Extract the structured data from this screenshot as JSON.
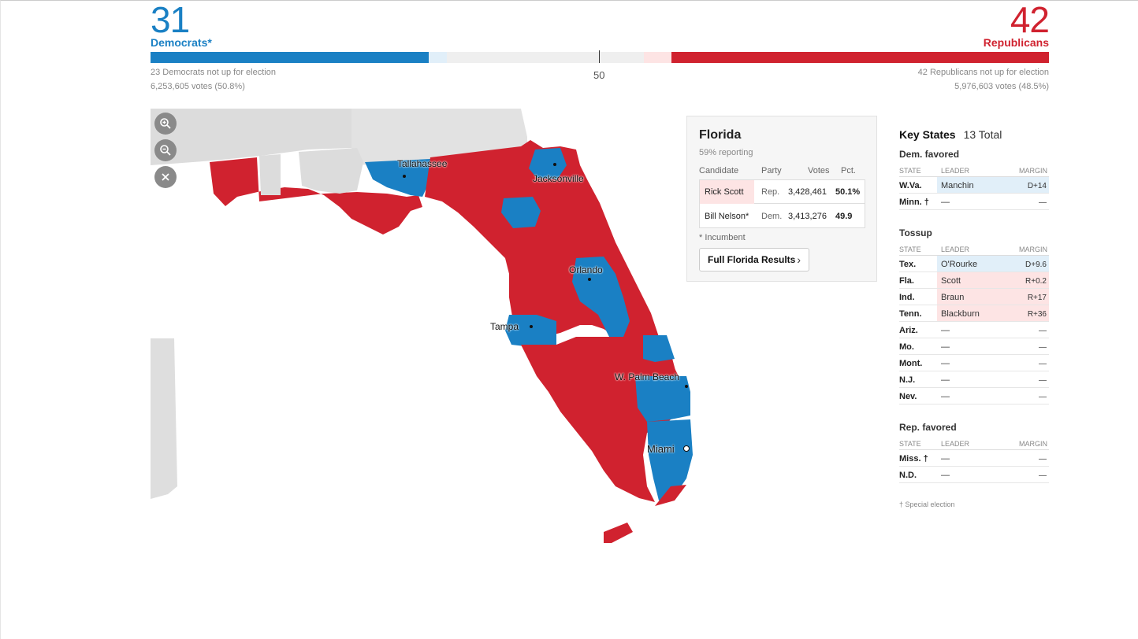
{
  "header": {
    "dem_count": "31",
    "dem_label": "Democrats*",
    "rep_count": "42",
    "rep_label": "Republicans",
    "majority_mark": "50",
    "dem_not_up": "23 Democrats not up for election",
    "dem_votes": "6,253,605 votes (50.8%)",
    "rep_not_up": "42 Republicans not up for election",
    "rep_votes": "5,976,603 votes (48.5%)"
  },
  "colors": {
    "dem": "#1a80c4",
    "rep": "#d0222f",
    "dem_light": "#e1eff9",
    "rep_light": "#fde4e4",
    "undecided": "#efefef"
  },
  "map": {
    "cities": {
      "tallahassee": "Tallahassee",
      "jacksonville": "Jacksonville",
      "orlando": "Orlando",
      "tampa": "Tampa",
      "west_palm_beach": "W. Palm Beach",
      "miami": "Miami"
    },
    "controls": {
      "zoom_in": "zoom-in-icon",
      "zoom_out": "zoom-out-icon",
      "close": "close-icon"
    }
  },
  "card": {
    "state": "Florida",
    "reporting": "59% reporting",
    "headers": {
      "candidate": "Candidate",
      "party": "Party",
      "votes": "Votes",
      "pct": "Pct."
    },
    "candidates": [
      {
        "name": "Rick Scott",
        "party": "Rep.",
        "votes": "3,428,461",
        "pct": "50.1%"
      },
      {
        "name": "Bill Nelson*",
        "party": "Dem.",
        "votes": "3,413,276",
        "pct": "49.9"
      }
    ],
    "incumbent_note": "* Incumbent",
    "results_button": "Full Florida Results"
  },
  "key_states": {
    "title": "Key States",
    "total": "13 Total",
    "col_state": "STATE",
    "col_leader": "LEADER",
    "col_margin": "MARGIN",
    "sections": [
      {
        "label": "Dem. favored",
        "rows": [
          {
            "state": "W.Va.",
            "leader": "Manchin",
            "margin": "D+14",
            "party": "dem"
          },
          {
            "state": "Minn. †",
            "leader": "—",
            "margin": "—",
            "party": "none"
          }
        ]
      },
      {
        "label": "Tossup",
        "rows": [
          {
            "state": "Tex.",
            "leader": "O'Rourke",
            "margin": "D+9.6",
            "party": "dem"
          },
          {
            "state": "Fla.",
            "leader": "Scott",
            "margin": "R+0.2",
            "party": "rep"
          },
          {
            "state": "Ind.",
            "leader": "Braun",
            "margin": "R+17",
            "party": "rep"
          },
          {
            "state": "Tenn.",
            "leader": "Blackburn",
            "margin": "R+36",
            "party": "rep"
          },
          {
            "state": "Ariz.",
            "leader": "—",
            "margin": "—",
            "party": "none"
          },
          {
            "state": "Mo.",
            "leader": "—",
            "margin": "—",
            "party": "none"
          },
          {
            "state": "Mont.",
            "leader": "—",
            "margin": "—",
            "party": "none"
          },
          {
            "state": "N.J.",
            "leader": "—",
            "margin": "—",
            "party": "none"
          },
          {
            "state": "Nev.",
            "leader": "—",
            "margin": "—",
            "party": "none"
          }
        ]
      },
      {
        "label": "Rep. favored",
        "rows": [
          {
            "state": "Miss. †",
            "leader": "—",
            "margin": "—",
            "party": "none"
          },
          {
            "state": "N.D.",
            "leader": "—",
            "margin": "—",
            "party": "none"
          }
        ]
      }
    ],
    "note": "† Special election"
  }
}
